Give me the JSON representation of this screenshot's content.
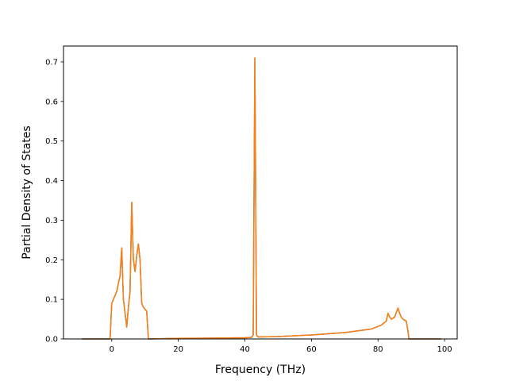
{
  "chart_data": {
    "type": "line",
    "title": "",
    "xlabel": "Frequency (THz)",
    "ylabel": "Partial Density of States",
    "xlim": [
      -14.5,
      103.8
    ],
    "ylim": [
      0,
      0.74
    ],
    "xticks": [
      0,
      20,
      40,
      60,
      80,
      100
    ],
    "yticks": [
      0.0,
      0.1,
      0.2,
      0.3,
      0.4,
      0.5,
      0.6,
      0.7
    ],
    "xtick_labels": [
      "0",
      "20",
      "40",
      "60",
      "80",
      "100"
    ],
    "ytick_labels": [
      "0.0",
      "0.1",
      "0.2",
      "0.3",
      "0.4",
      "0.5",
      "0.6",
      "0.7"
    ],
    "grid": false,
    "legend": "none",
    "series": [
      {
        "color": "#1f77b4",
        "x": [
          -9.0,
          -0.5,
          0.0,
          0.5,
          1.5,
          2.5,
          3.0,
          3.5,
          4.5,
          5.0,
          5.5,
          6.0,
          6.5,
          7.0,
          7.5,
          8.0,
          8.5,
          9.0,
          9.5,
          10.5,
          11.0,
          20.0,
          30.0,
          40.0,
          42.0,
          42.5,
          43.0,
          43.5,
          44.0,
          50.0,
          60.0,
          70.0,
          78.0,
          81.0,
          82.5,
          83.0,
          83.5,
          84.0,
          85.0,
          86.0,
          86.5,
          87.0,
          87.5,
          88.5,
          89.0,
          89.3,
          89.6,
          99.0
        ],
        "y": [
          0.0,
          0.0,
          0.09,
          0.1,
          0.12,
          0.16,
          0.23,
          0.1,
          0.03,
          0.08,
          0.12,
          0.345,
          0.2,
          0.17,
          0.21,
          0.24,
          0.2,
          0.09,
          0.08,
          0.07,
          0.0,
          0.0015,
          0.002,
          0.003,
          0.004,
          0.01,
          0.71,
          0.01,
          0.005,
          0.006,
          0.01,
          0.016,
          0.025,
          0.035,
          0.045,
          0.065,
          0.055,
          0.05,
          0.055,
          0.078,
          0.065,
          0.055,
          0.05,
          0.045,
          0.02,
          0.0,
          0.0,
          0.0
        ]
      },
      {
        "color": "#ff7f0e",
        "x": [
          -9.0,
          -0.5,
          0.0,
          0.5,
          1.5,
          2.5,
          3.0,
          3.5,
          4.5,
          5.0,
          5.5,
          6.0,
          6.5,
          7.0,
          7.5,
          8.0,
          8.5,
          9.0,
          9.5,
          10.5,
          11.0,
          20.0,
          30.0,
          40.0,
          42.0,
          42.5,
          43.0,
          43.5,
          44.0,
          50.0,
          60.0,
          70.0,
          78.0,
          81.0,
          82.5,
          83.0,
          83.5,
          84.0,
          85.0,
          86.0,
          86.5,
          87.0,
          87.5,
          88.5,
          89.0,
          89.3,
          89.6,
          99.0
        ],
        "y": [
          0.0,
          0.0,
          0.09,
          0.1,
          0.12,
          0.16,
          0.23,
          0.1,
          0.03,
          0.08,
          0.12,
          0.345,
          0.2,
          0.17,
          0.21,
          0.24,
          0.2,
          0.09,
          0.08,
          0.07,
          0.0,
          0.0015,
          0.002,
          0.003,
          0.004,
          0.01,
          0.71,
          0.01,
          0.005,
          0.006,
          0.01,
          0.016,
          0.025,
          0.035,
          0.045,
          0.065,
          0.055,
          0.05,
          0.055,
          0.078,
          0.065,
          0.055,
          0.05,
          0.045,
          0.02,
          0.0,
          0.0,
          0.0
        ]
      }
    ]
  }
}
